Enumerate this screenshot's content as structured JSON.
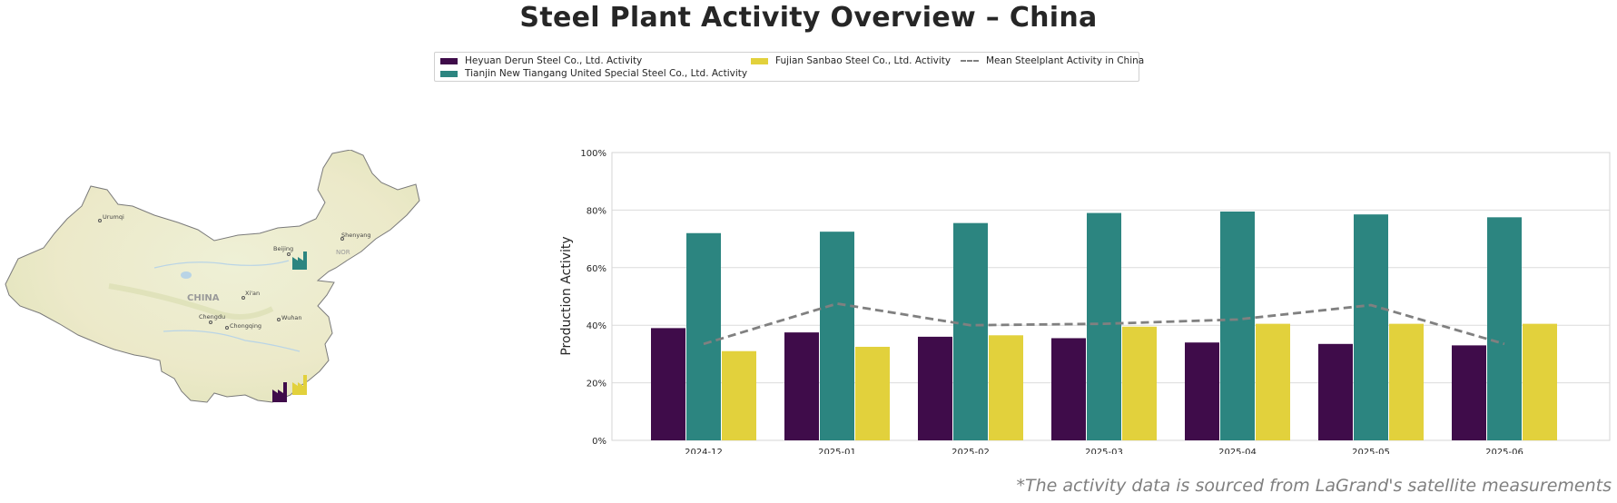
{
  "title": "Steel Plant Activity Overview – China",
  "legend": [
    {
      "label": "Heyuan Derun Steel Co., Ltd. Activity",
      "color": "#3f0c4a",
      "kind": "bar"
    },
    {
      "label": "Tianjin New Tiangang United Special Steel Co., Ltd. Activity",
      "color": "#2c8580",
      "kind": "bar"
    },
    {
      "label": "Fujian Sanbao Steel Co., Ltd. Activity",
      "color": "#e2d13c",
      "kind": "bar"
    },
    {
      "label": "Mean Steelplant Activity in China",
      "color": "#808080",
      "kind": "dashed-line"
    }
  ],
  "map": {
    "country_label": "CHINA",
    "cities": [
      "Urumqi",
      "Beijing",
      "Shenyang",
      "Xi'an",
      "Chengdu",
      "Chongqing",
      "Wuhan"
    ],
    "sea_label": "NOR",
    "markers": [
      {
        "name": "Tianjin New Tiangang United Special Steel Co., Ltd.",
        "color": "#2c8580",
        "icon": "factory-icon"
      },
      {
        "name": "Heyuan Derun Steel Co., Ltd.",
        "color": "#3f0c4a",
        "icon": "factory-icon"
      },
      {
        "name": "Fujian Sanbao Steel Co., Ltd.",
        "color": "#e2d13c",
        "icon": "factory-icon"
      }
    ]
  },
  "chart_data": {
    "type": "bar",
    "categories": [
      "2024-12",
      "2025-01",
      "2025-02",
      "2025-03",
      "2025-04",
      "2025-05",
      "2025-06"
    ],
    "series": [
      {
        "name": "Heyuan Derun Steel Co., Ltd. Activity",
        "color": "#3f0c4a",
        "values": [
          39,
          37.5,
          36,
          35.5,
          34,
          33.5,
          33
        ]
      },
      {
        "name": "Tianjin New Tiangang United Special Steel Co., Ltd. Activity",
        "color": "#2c8580",
        "values": [
          72,
          72.5,
          75.5,
          79,
          79.5,
          78.5,
          77.5
        ]
      },
      {
        "name": "Fujian Sanbao Steel Co., Ltd. Activity",
        "color": "#e2d13c",
        "values": [
          31,
          32.5,
          36.5,
          39.5,
          40.5,
          40.5,
          40.5
        ]
      }
    ],
    "line": {
      "name": "Mean Steelplant Activity in China",
      "color": "#808080",
      "style": "dashed",
      "values": [
        33.5,
        47.5,
        40,
        40.5,
        42,
        47,
        33.5
      ]
    },
    "ylabel": "Production Activity",
    "ylim": [
      0,
      100
    ],
    "yticks": [
      0,
      20,
      40,
      60,
      80,
      100
    ],
    "ytick_labels": [
      "0%",
      "20%",
      "40%",
      "60%",
      "80%",
      "100%"
    ],
    "grid": "horizontal"
  },
  "footnote": "*The activity data is sourced from LaGrand's satellite measurements"
}
